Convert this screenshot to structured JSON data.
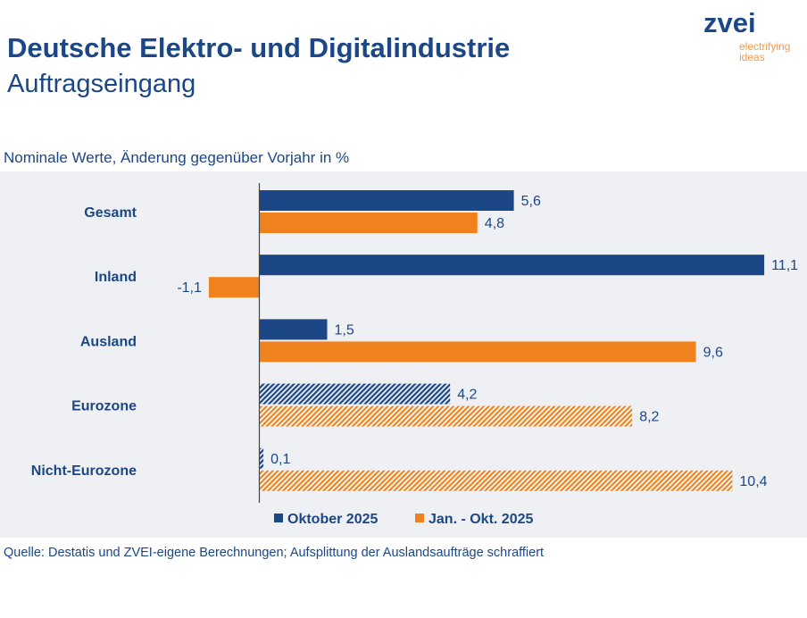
{
  "header": {
    "title": "Deutsche Elektro- und Digitalindustrie",
    "subtitle": "Auftragseingang"
  },
  "logo": {
    "name": "zvei",
    "tagline_1": "electrifying",
    "tagline_2": "ideas"
  },
  "note": "Nominale Werte, Änderung gegenüber Vorjahr in %",
  "source": "Quelle: Destatis und ZVEI-eigene Berechnungen; Aufsplittung der Auslandsaufträge schraffiert",
  "chart_data": {
    "type": "bar",
    "orientation": "horizontal",
    "categories": [
      "Gesamt",
      "Inland",
      "Ausland",
      "Eurozone",
      "Nicht-Eurozone"
    ],
    "hatched_categories": [
      "Eurozone",
      "Nicht-Eurozone"
    ],
    "series": [
      {
        "name": "Oktober 2025",
        "color": "#1b4787",
        "values": [
          5.6,
          11.1,
          1.5,
          4.2,
          0.1
        ],
        "labels": [
          "5,6",
          "11,1",
          "1,5",
          "4,2",
          "0,1"
        ]
      },
      {
        "name": "Jan. - Okt. 2025",
        "color": "#f0821e",
        "values": [
          4.8,
          -1.1,
          9.6,
          8.2,
          10.4
        ],
        "labels": [
          "4,8",
          "-1,1",
          "9,6",
          "8,2",
          "10,4"
        ]
      }
    ],
    "legend": "bottom",
    "grid": false,
    "background": "#eef0f3"
  }
}
